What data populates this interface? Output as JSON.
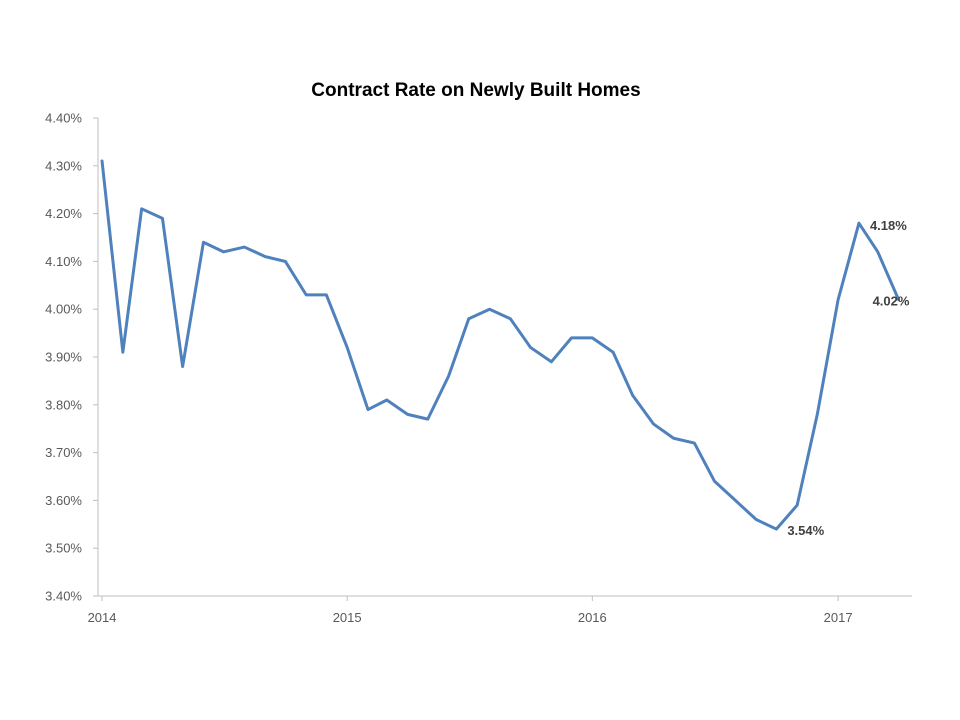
{
  "chart_data": {
    "type": "line",
    "title": "Contract Rate on Newly Built Homes",
    "xlabel": "",
    "ylabel": "",
    "ylim": [
      3.4,
      4.4
    ],
    "xlim": [
      "2013-12-26",
      "2017-04-21"
    ],
    "y_tick_labels": [
      "3.40%",
      "3.50%",
      "3.60%",
      "3.70%",
      "3.80%",
      "3.90%",
      "4.00%",
      "4.10%",
      "4.20%",
      "4.30%",
      "4.40%"
    ],
    "y_ticks": [
      3.4,
      3.5,
      3.6,
      3.7,
      3.8,
      3.9,
      4.0,
      4.1,
      4.2,
      4.3,
      4.4
    ],
    "x_tick_labels": [
      "2014",
      "2015",
      "2016",
      "2017"
    ],
    "x_ticks": [
      "2014-01-01",
      "2015-01-01",
      "2016-01-01",
      "2017-01-01"
    ],
    "grid": false,
    "legend": "none",
    "line_color": "#4F81BD",
    "series": [
      {
        "x": [
          "2014-01",
          "2014-02",
          "2014-03",
          "2014-04",
          "2014-05",
          "2014-06",
          "2014-07",
          "2014-08",
          "2014-09",
          "2014-10",
          "2014-11",
          "2014-12",
          "2015-01",
          "2015-02",
          "2015-03",
          "2015-04",
          "2015-05",
          "2015-06",
          "2015-07",
          "2015-08",
          "2015-09",
          "2015-10",
          "2015-11",
          "2015-12",
          "2016-01",
          "2016-02",
          "2016-03",
          "2016-04",
          "2016-05",
          "2016-06",
          "2016-07",
          "2016-08",
          "2016-09",
          "2016-10",
          "2016-11",
          "2016-12",
          "2017-01",
          "2017-02",
          "2017-03",
          "2017-04"
        ],
        "values": [
          4.31,
          3.91,
          4.21,
          4.19,
          3.88,
          4.14,
          4.12,
          4.13,
          4.11,
          4.1,
          4.03,
          4.03,
          3.92,
          3.79,
          3.81,
          3.78,
          3.77,
          3.86,
          3.98,
          4.0,
          3.98,
          3.92,
          3.89,
          3.94,
          3.94,
          3.91,
          3.82,
          3.76,
          3.73,
          3.72,
          3.64,
          3.6,
          3.56,
          3.54,
          3.59,
          3.78,
          4.02,
          4.18,
          4.12,
          4.02
        ]
      }
    ],
    "annotations": [
      {
        "text": "3.54%",
        "x": "2016-10",
        "y": 3.54
      },
      {
        "text": "4.18%",
        "x": "2017-02",
        "y": 4.18
      },
      {
        "text": "4.02%",
        "x": "2017-04",
        "y": 4.02
      }
    ]
  }
}
